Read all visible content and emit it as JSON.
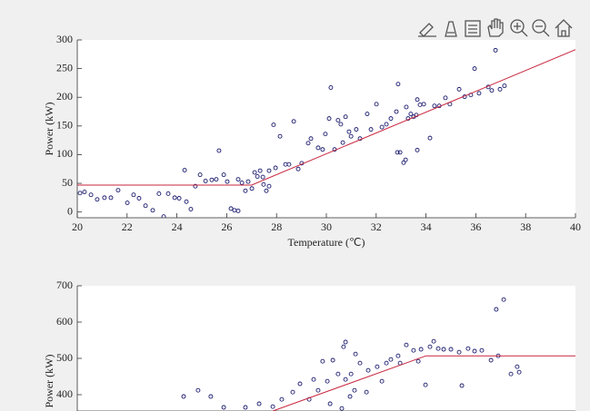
{
  "chart_data": [
    {
      "type": "scatter",
      "xlabel": "Temperature (℃)",
      "ylabel": "Power (kW)",
      "xlim": [
        20,
        40
      ],
      "ylim": [
        -10,
        300
      ],
      "xticks": [
        20,
        22,
        24,
        26,
        28,
        30,
        32,
        34,
        36,
        38,
        40
      ],
      "yticks": [
        0,
        50,
        100,
        150,
        200,
        250,
        300
      ],
      "series": [
        {
          "style": "markers",
          "color": "#1a1a6e",
          "x": [
            20.11,
            20.29,
            20.55,
            20.8,
            21.09,
            21.35,
            21.64,
            22.01,
            22.26,
            22.48,
            22.74,
            23.03,
            23.28,
            23.47,
            23.65,
            23.91,
            24.09,
            24.31,
            24.38,
            24.56,
            24.74,
            24.93,
            25.15,
            25.4,
            25.58,
            25.69,
            25.88,
            26.02,
            26.17,
            26.31,
            26.46,
            26.46,
            26.61,
            26.75,
            26.86,
            27.01,
            27.12,
            27.23,
            27.34,
            27.45,
            27.48,
            27.59,
            27.7,
            27.7,
            27.88,
            27.96,
            28.14,
            28.36,
            28.5,
            28.69,
            28.87,
            29.01,
            29.27,
            29.38,
            29.67,
            29.85,
            29.96,
            30.11,
            30.18,
            30.33,
            30.47,
            30.58,
            30.66,
            30.77,
            30.91,
            30.99,
            31.2,
            31.35,
            31.64,
            31.79,
            32.01,
            32.23,
            32.41,
            32.59,
            32.81,
            32.85,
            32.96,
            33.1,
            33.18,
            33.21,
            33.28,
            33.39,
            33.5,
            33.61,
            33.65,
            33.76,
            33.91,
            34.16,
            34.34,
            34.53,
            34.78,
            34.96,
            35.33,
            35.55,
            35.8,
            35.95,
            36.13,
            36.5,
            36.64,
            36.79,
            36.97,
            37.15,
            32.88,
            33.65
          ],
          "values": [
            33,
            35,
            30,
            22,
            25,
            25,
            38,
            16,
            30,
            24,
            11,
            3,
            32,
            -8,
            32,
            25,
            24,
            73,
            18,
            5,
            45,
            65,
            54,
            56,
            57,
            107,
            65,
            53,
            6,
            3,
            2,
            57,
            51,
            37,
            53,
            41,
            69,
            62,
            72,
            61,
            48,
            37,
            45,
            72,
            152,
            77,
            132,
            83,
            83,
            158,
            75,
            85,
            120,
            128,
            112,
            109,
            136,
            163,
            217,
            109,
            160,
            153,
            121,
            166,
            140,
            132,
            144,
            128,
            171,
            144,
            188,
            148,
            153,
            163,
            175,
            104,
            104,
            86,
            91,
            183,
            163,
            171,
            166,
            169,
            108,
            187,
            188,
            129,
            185,
            185,
            199,
            188,
            214,
            201,
            204,
            250,
            207,
            218,
            212,
            282,
            214,
            220,
            223,
            196
          ]
        },
        {
          "style": "line",
          "color": "#c8243c",
          "x": [
            20,
            27,
            40
          ],
          "values": [
            47,
            47,
            283
          ]
        }
      ]
    },
    {
      "type": "scatter",
      "ylabel": "Power (kW)",
      "xlim": [
        20,
        40
      ],
      "ylim": [
        355,
        700
      ],
      "yticks": [
        400,
        500,
        600,
        700
      ],
      "series": [
        {
          "style": "markers",
          "color": "#1a1a6e",
          "x": [
            30.77,
            30.69,
            31.17,
            30.26,
            29.85,
            30.47,
            30.99,
            30.95,
            30.04,
            29.49,
            28.94,
            28.65,
            28.21,
            27.85,
            27.3,
            26.75,
            24.85,
            25.36,
            24.27,
            25.88,
            31.35,
            31.68,
            32.04,
            32.41,
            32.88,
            33.21,
            33.5,
            33.8,
            34.16,
            34.31,
            34.49,
            34.71,
            35.0,
            35.33,
            35.69,
            35.95,
            36.24,
            36.61,
            36.9,
            37.12,
            36.82,
            37.41,
            37.66,
            37.74,
            35.44,
            33.98,
            32.59,
            32.96,
            33.69,
            29.31,
            29.67,
            30.15,
            30.62,
            30.77,
            31.13,
            31.61,
            32.23
          ],
          "values": [
            545,
            532,
            512,
            495,
            492,
            457,
            457,
            395,
            437,
            442,
            430,
            407,
            387,
            367,
            375,
            365,
            412,
            395,
            395,
            365,
            487,
            467,
            477,
            487,
            507,
            537,
            522,
            525,
            532,
            547,
            527,
            525,
            525,
            517,
            527,
            520,
            522,
            495,
            507,
            662,
            635,
            457,
            477,
            462,
            425,
            427,
            497,
            487,
            492,
            387,
            412,
            375,
            362,
            442,
            412,
            407,
            437
          ]
        },
        {
          "style": "line",
          "color": "#c8243c",
          "x": [
            27.85,
            34,
            40
          ],
          "values": [
            355,
            507,
            507
          ]
        }
      ]
    }
  ]
}
